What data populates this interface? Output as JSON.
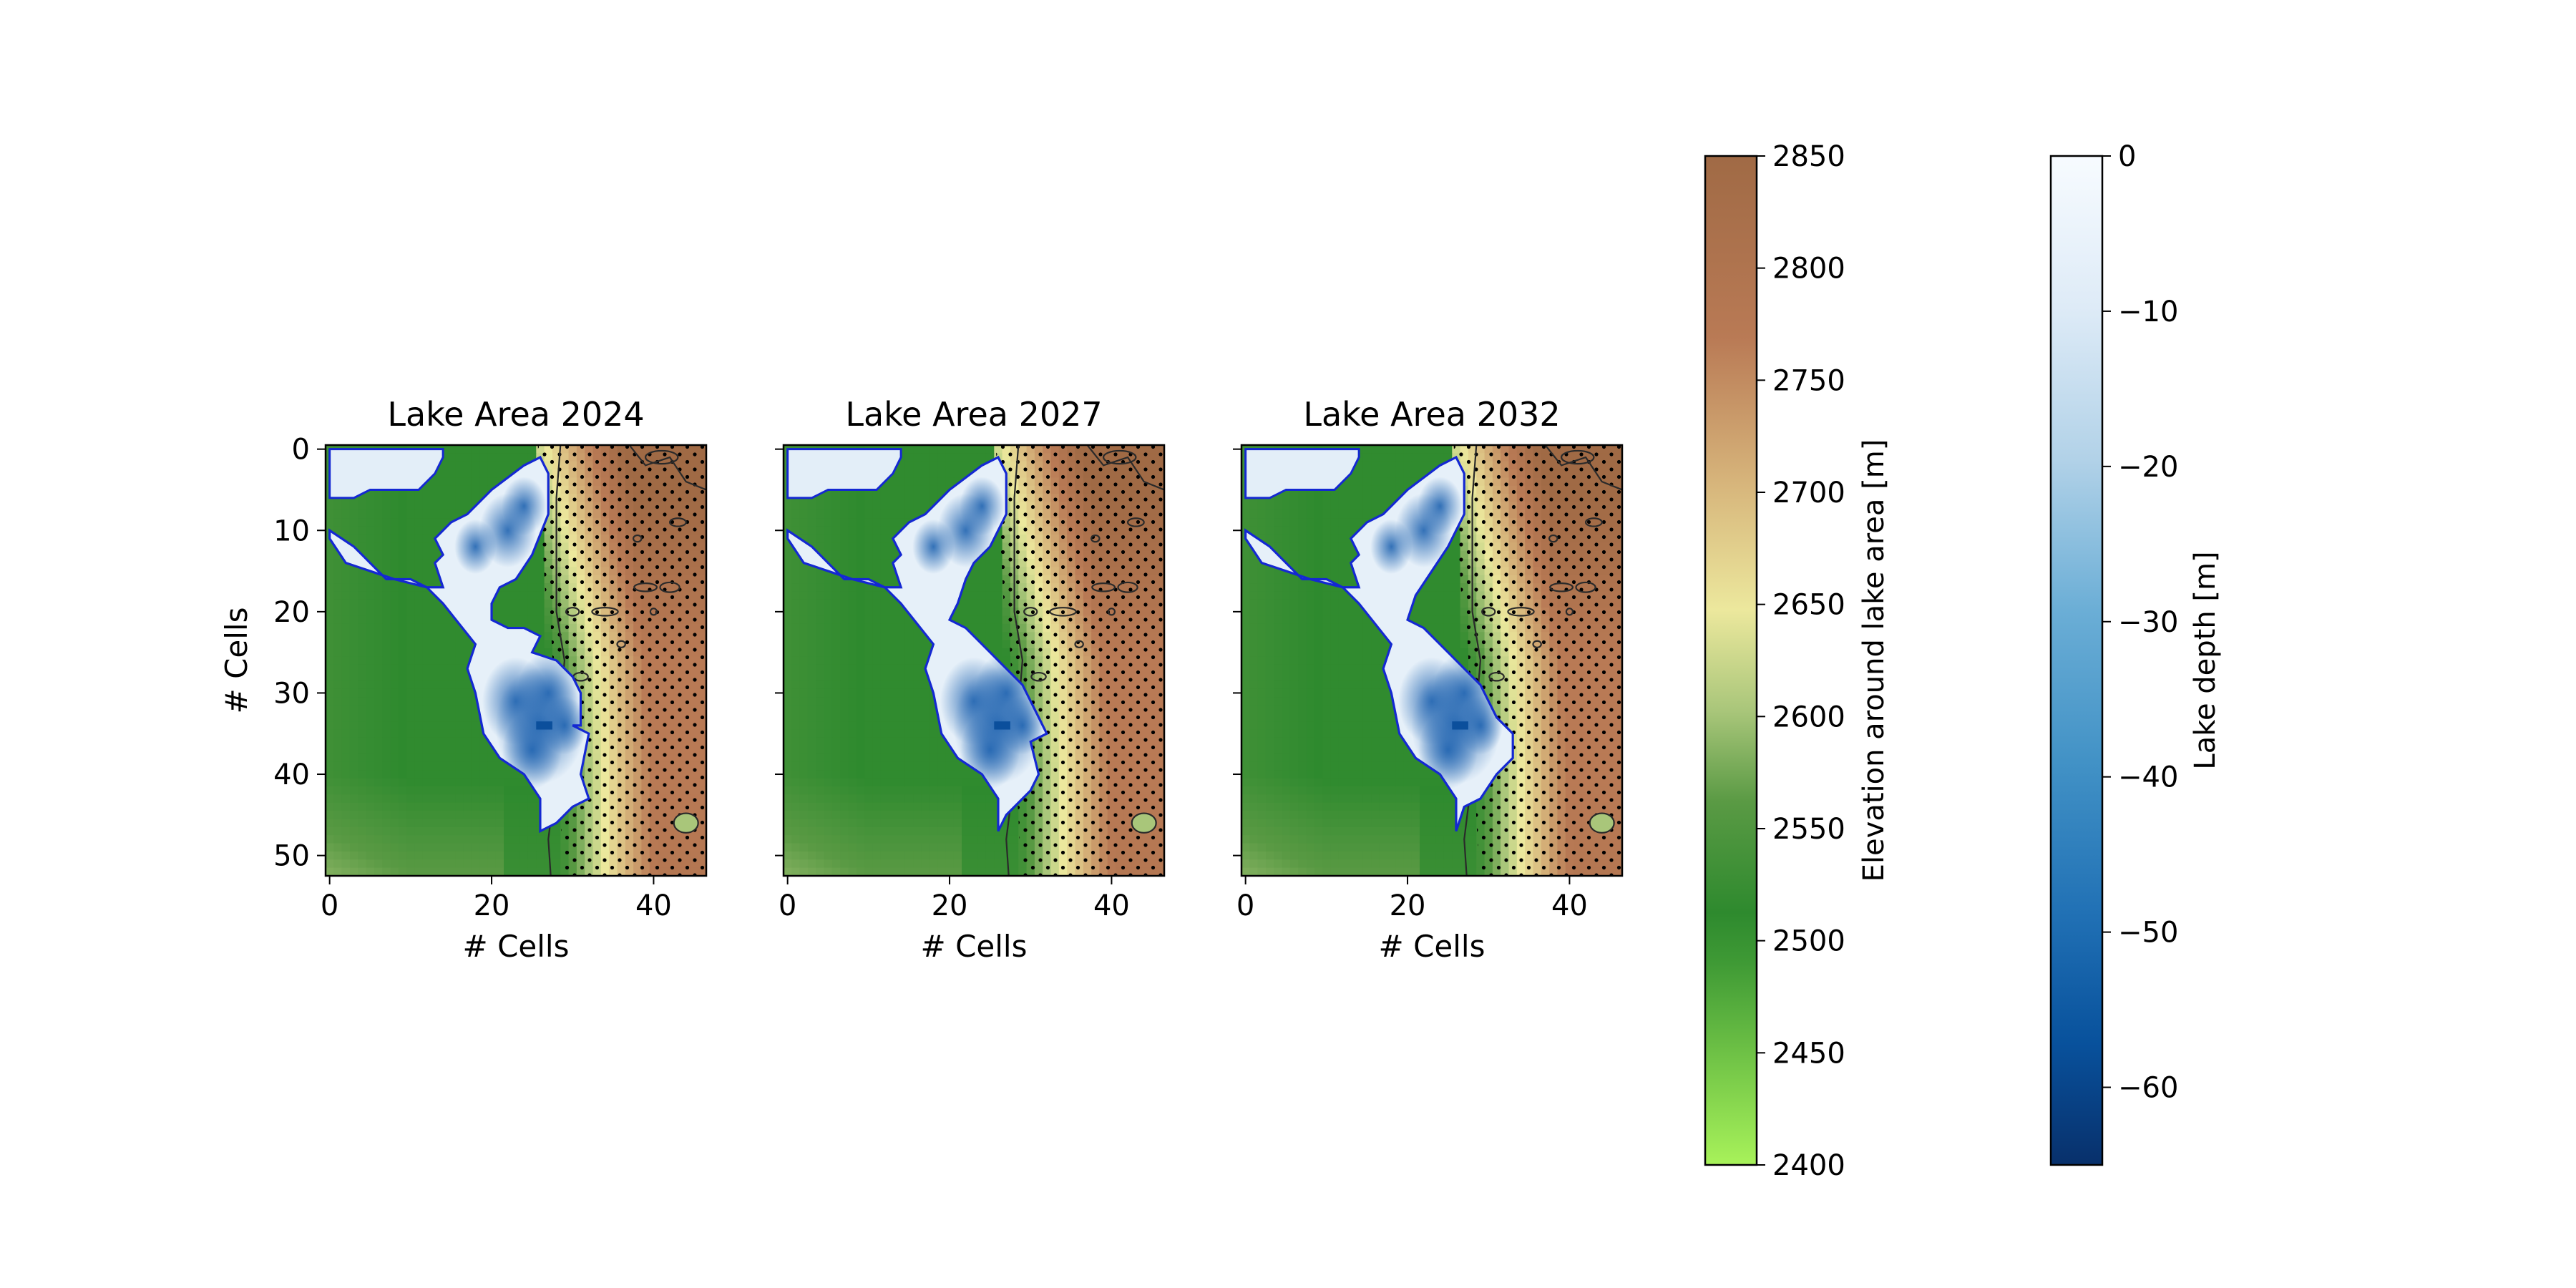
{
  "figure": {
    "panels": [
      {
        "id": "2024",
        "title": "Lake Area 2024",
        "xlabel": "# Cells",
        "ylabel": "# Cells",
        "show_yticklabels": true
      },
      {
        "id": "2027",
        "title": "Lake Area 2027",
        "xlabel": "# Cells",
        "ylabel": "",
        "show_yticklabels": false
      },
      {
        "id": "2032",
        "title": "Lake Area 2032",
        "xlabel": "# Cells",
        "ylabel": "",
        "show_yticklabels": false
      }
    ],
    "xticks": [
      "0",
      "20",
      "40"
    ],
    "yticks": [
      "0",
      "10",
      "20",
      "30",
      "40",
      "50"
    ],
    "colorbars": [
      {
        "id": "elevation",
        "label": "Elevation around lake area [m]",
        "ticks": [
          "2400",
          "2450",
          "2500",
          "2550",
          "2600",
          "2650",
          "2700",
          "2750",
          "2800",
          "2850"
        ]
      },
      {
        "id": "depth",
        "label": "Lake depth [m]",
        "ticks": [
          "0",
          "−10",
          "−20",
          "−30",
          "−40",
          "−50",
          "−60"
        ]
      }
    ]
  },
  "colors": {
    "lake_outline": "#1428d2",
    "contour": "#2a2a2a",
    "stipple": "#000000",
    "elevation_cmap": [
      "#a8f25a",
      "#3f9a35",
      "#2e8a2e",
      "#5a9a44",
      "#a9c67a",
      "#ece89d",
      "#d6b37a",
      "#b97a55",
      "#a06a45"
    ],
    "depth_cmap": [
      "#f7fbff",
      "#deebf7",
      "#c6dbef",
      "#9ecae1",
      "#6baed6",
      "#4292c6",
      "#2171b5",
      "#08519c",
      "#08306b"
    ]
  },
  "chart_data": {
    "type": "heatmap",
    "grid": {
      "nx": 47,
      "ny": 53
    },
    "xlim": [
      -0.5,
      46.5
    ],
    "ylim": [
      52.5,
      -0.5
    ],
    "elevation_range": [
      2400,
      2850
    ],
    "depth_range": [
      -65,
      0
    ],
    "years": [
      "2024",
      "2027",
      "2032"
    ],
    "lake_outline_2024": [
      [
        14,
        0
      ],
      [
        0,
        0
      ],
      [
        0,
        6
      ],
      [
        3,
        6
      ],
      [
        5,
        5
      ],
      [
        11,
        5
      ],
      [
        13,
        3
      ],
      [
        14,
        1
      ]
    ],
    "lake_main_2024": [
      [
        0,
        10
      ],
      [
        3,
        12
      ],
      [
        5,
        14
      ],
      [
        7,
        16
      ],
      [
        10,
        16
      ],
      [
        12,
        17
      ],
      [
        14,
        17
      ],
      [
        13,
        14
      ],
      [
        14,
        13
      ],
      [
        13,
        11
      ],
      [
        15,
        9
      ],
      [
        17,
        8
      ],
      [
        20,
        5
      ],
      [
        24,
        2
      ],
      [
        26,
        1
      ],
      [
        27,
        3
      ],
      [
        27,
        8
      ],
      [
        25,
        13
      ],
      [
        23,
        16
      ],
      [
        21,
        17
      ],
      [
        20,
        19
      ],
      [
        20,
        21
      ],
      [
        22,
        22
      ],
      [
        24,
        22
      ],
      [
        26,
        23
      ],
      [
        25,
        25
      ],
      [
        28,
        26
      ],
      [
        30,
        28
      ],
      [
        31,
        30
      ],
      [
        31,
        34
      ],
      [
        30,
        34
      ],
      [
        32,
        35
      ],
      [
        31,
        40
      ],
      [
        32,
        43
      ],
      [
        30,
        44
      ],
      [
        28,
        46
      ],
      [
        26,
        47
      ],
      [
        26,
        43
      ],
      [
        24,
        40
      ],
      [
        21,
        38
      ],
      [
        19,
        35
      ],
      [
        18,
        30
      ],
      [
        17,
        27
      ],
      [
        18,
        24
      ],
      [
        14,
        19
      ],
      [
        12,
        17
      ],
      [
        8,
        16
      ],
      [
        5,
        15
      ],
      [
        2,
        14
      ],
      [
        0,
        11
      ]
    ],
    "lake_main_2027": [
      [
        0,
        10
      ],
      [
        3,
        12
      ],
      [
        5,
        14
      ],
      [
        7,
        16
      ],
      [
        10,
        16
      ],
      [
        12,
        17
      ],
      [
        14,
        17
      ],
      [
        13,
        14
      ],
      [
        14,
        13
      ],
      [
        13,
        11
      ],
      [
        15,
        9
      ],
      [
        17,
        8
      ],
      [
        20,
        5
      ],
      [
        24,
        2
      ],
      [
        26,
        1
      ],
      [
        27,
        3
      ],
      [
        27,
        8
      ],
      [
        25,
        12
      ],
      [
        23,
        14
      ],
      [
        22,
        16
      ],
      [
        21,
        19
      ],
      [
        20,
        21
      ],
      [
        22,
        22
      ],
      [
        25,
        25
      ],
      [
        27,
        27
      ],
      [
        29,
        29
      ],
      [
        30,
        31
      ],
      [
        31,
        33
      ],
      [
        32,
        35
      ],
      [
        30,
        36
      ],
      [
        31,
        40
      ],
      [
        30,
        42
      ],
      [
        28,
        44
      ],
      [
        27,
        45
      ],
      [
        26,
        47
      ],
      [
        26,
        43
      ],
      [
        24,
        40
      ],
      [
        21,
        38
      ],
      [
        19,
        35
      ],
      [
        18,
        30
      ],
      [
        17,
        27
      ],
      [
        18,
        24
      ],
      [
        14,
        19
      ],
      [
        12,
        17
      ],
      [
        8,
        16
      ],
      [
        5,
        15
      ],
      [
        2,
        14
      ],
      [
        0,
        11
      ]
    ],
    "lake_main_2032": [
      [
        0,
        10
      ],
      [
        3,
        12
      ],
      [
        5,
        14
      ],
      [
        7,
        16
      ],
      [
        10,
        16
      ],
      [
        12,
        17
      ],
      [
        14,
        17
      ],
      [
        13,
        14
      ],
      [
        14,
        13
      ],
      [
        13,
        11
      ],
      [
        15,
        9
      ],
      [
        17,
        8
      ],
      [
        20,
        5
      ],
      [
        24,
        2
      ],
      [
        26,
        1
      ],
      [
        27,
        3
      ],
      [
        27,
        8
      ],
      [
        25,
        12
      ],
      [
        23,
        15
      ],
      [
        21,
        18
      ],
      [
        20,
        21
      ],
      [
        22,
        22
      ],
      [
        25,
        25
      ],
      [
        27,
        27
      ],
      [
        29,
        29
      ],
      [
        30,
        31
      ],
      [
        31,
        33
      ],
      [
        33,
        35
      ],
      [
        33,
        38
      ],
      [
        31,
        40
      ],
      [
        29,
        43
      ],
      [
        27,
        44
      ],
      [
        26,
        47
      ],
      [
        26,
        43
      ],
      [
        24,
        40
      ],
      [
        21,
        38
      ],
      [
        19,
        35
      ],
      [
        18,
        30
      ],
      [
        17,
        27
      ],
      [
        18,
        24
      ],
      [
        14,
        19
      ],
      [
        12,
        17
      ],
      [
        8,
        16
      ],
      [
        5,
        15
      ],
      [
        2,
        14
      ],
      [
        0,
        11
      ]
    ],
    "depth_centers": [
      [
        26,
        34,
        -60
      ],
      [
        23,
        31,
        -45
      ],
      [
        27,
        30,
        -42
      ],
      [
        25,
        37,
        -40
      ],
      [
        22,
        10,
        -38
      ],
      [
        24,
        7,
        -30
      ],
      [
        18,
        12,
        -28
      ],
      [
        29,
        34,
        -30
      ]
    ]
  }
}
